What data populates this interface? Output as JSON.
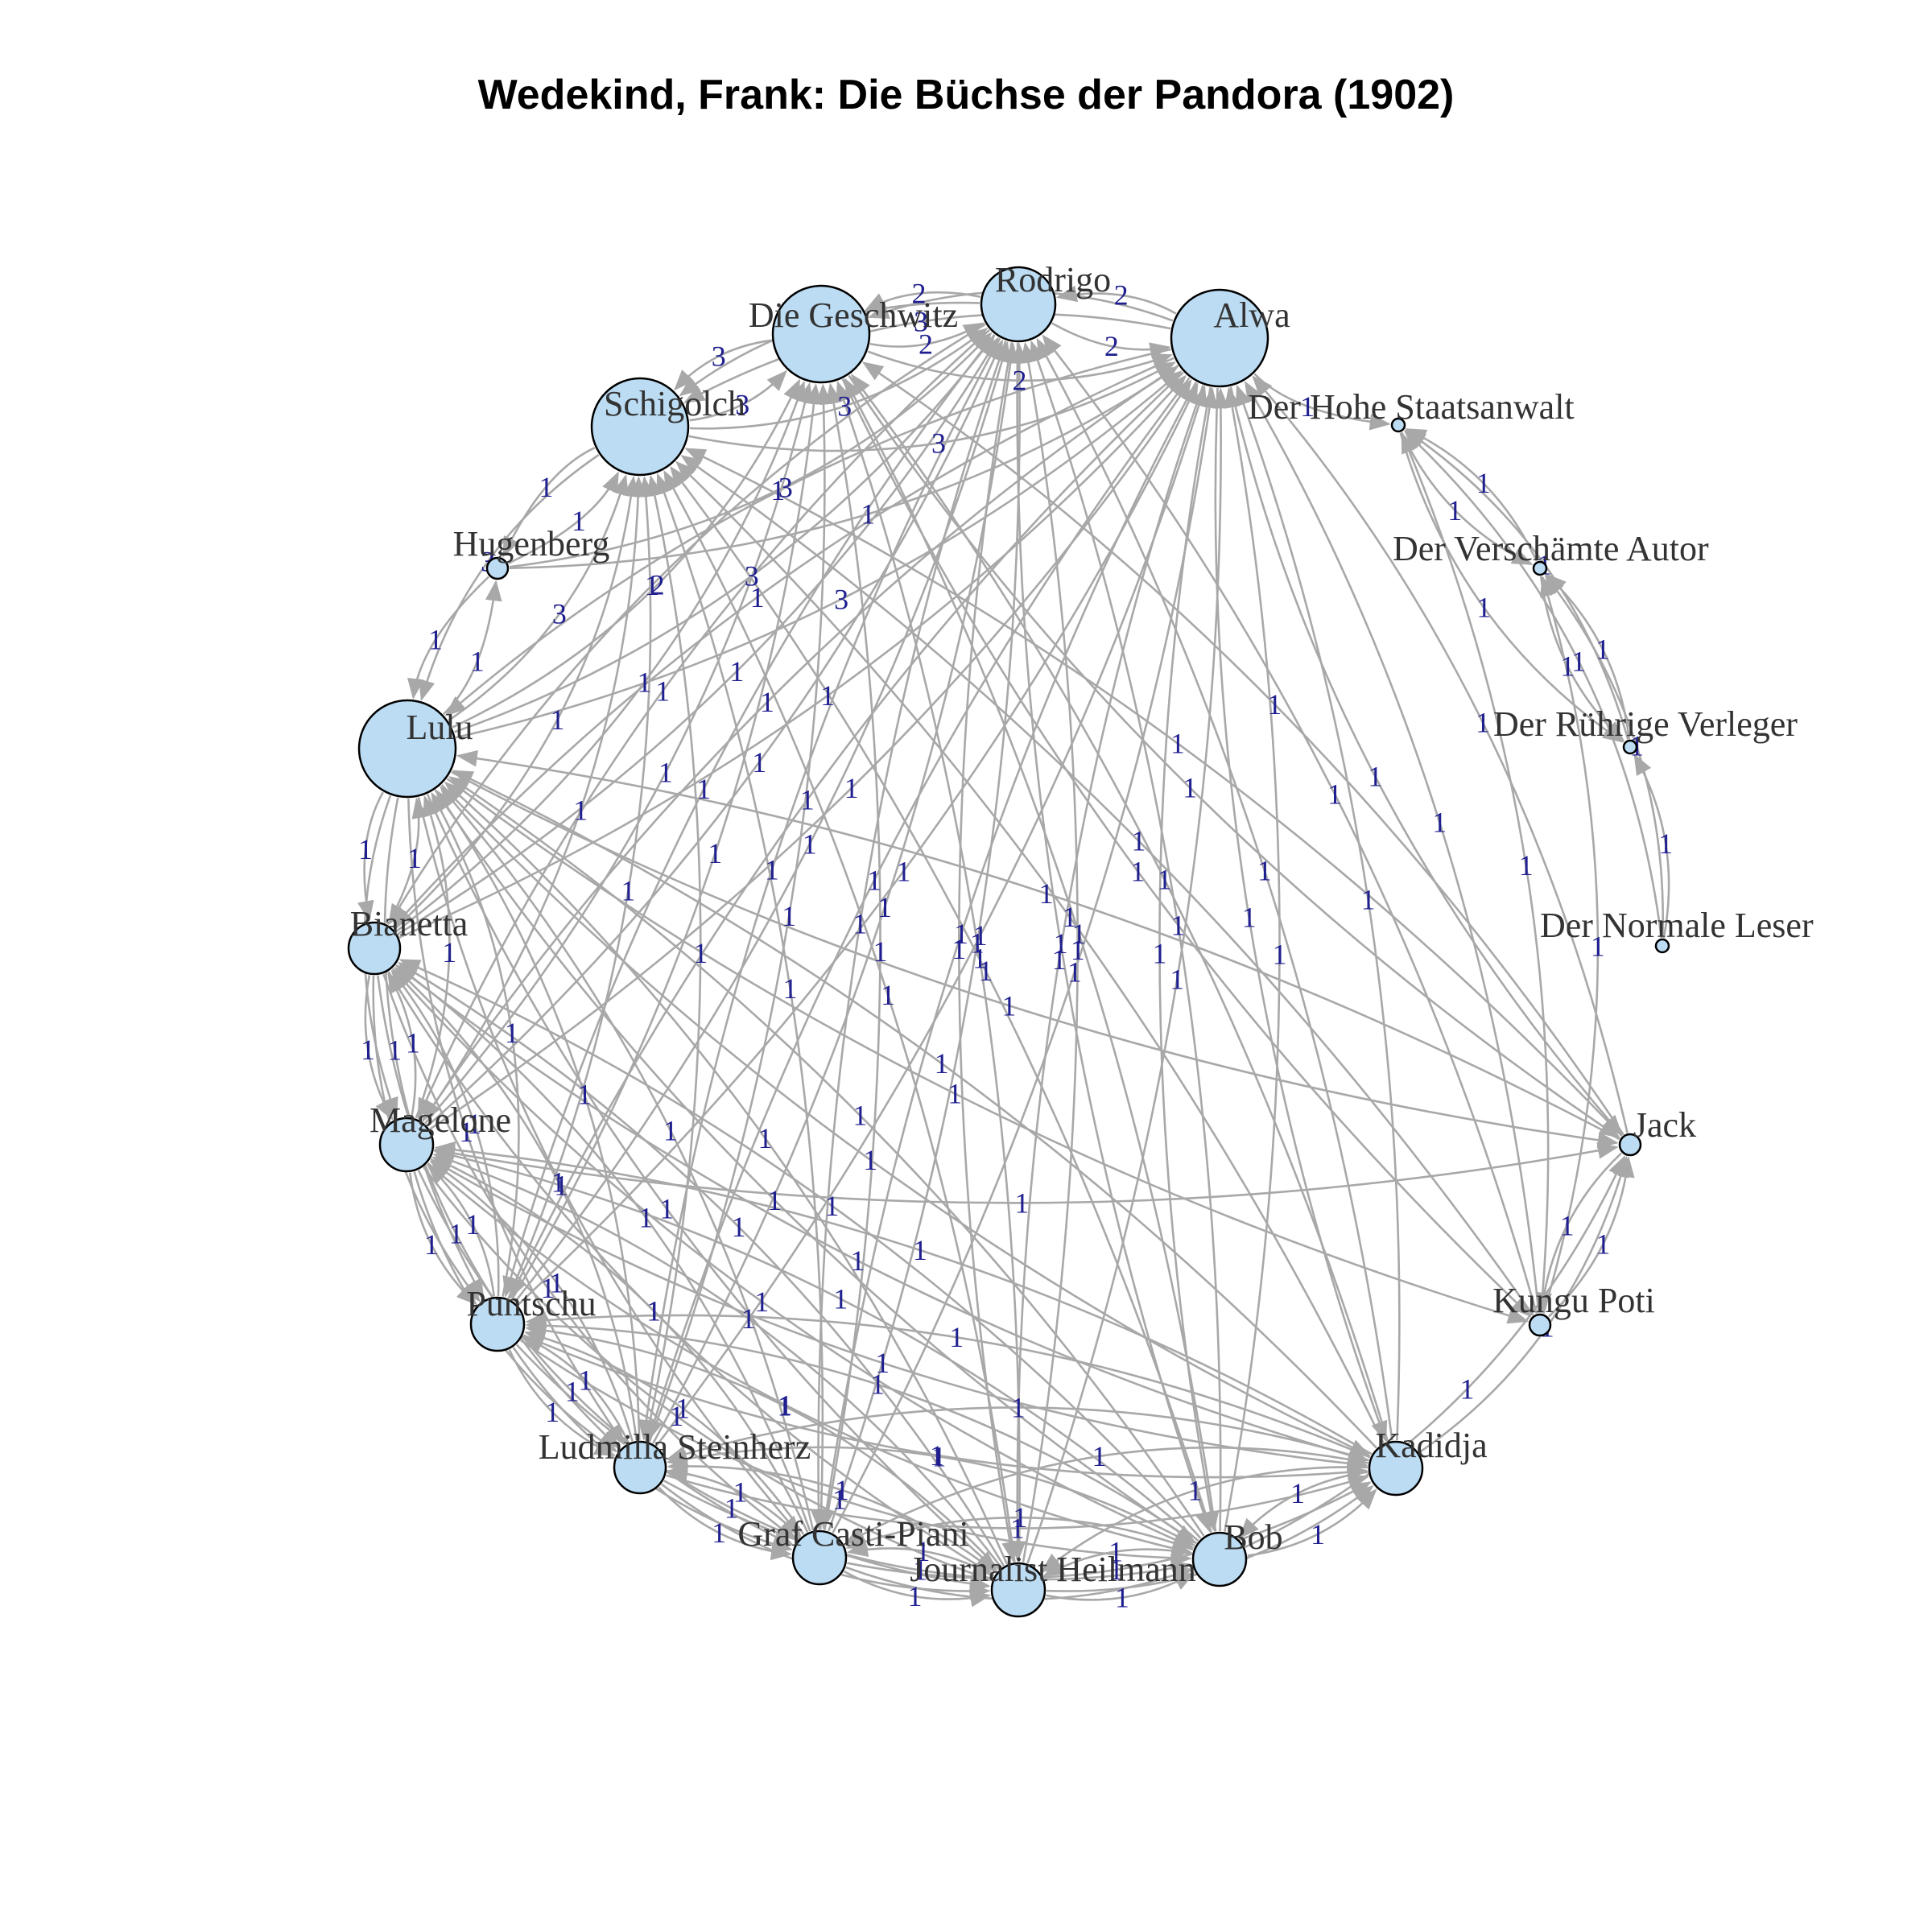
{
  "title": "Wedekind, Frank: Die Büchse der Pandora (1902)",
  "nodes": [
    {
      "id": "rodrigo",
      "label": "Rodrigo"
    },
    {
      "id": "alwa",
      "label": "Alwa"
    },
    {
      "id": "geschwitz",
      "label": "Die Geschwitz"
    },
    {
      "id": "schigolch",
      "label": "Schigolch"
    },
    {
      "id": "staatsanwalt",
      "label": "Der Hohe Staatsanwalt"
    },
    {
      "id": "hugenberg",
      "label": "Hugenberg"
    },
    {
      "id": "autor",
      "label": "Der Verschämte Autor"
    },
    {
      "id": "lulu",
      "label": "Lulu"
    },
    {
      "id": "verleger",
      "label": "Der Rührige Verleger"
    },
    {
      "id": "bianetta",
      "label": "Bianetta"
    },
    {
      "id": "leser",
      "label": "Der Normale Leser"
    },
    {
      "id": "magelone",
      "label": "Magelone"
    },
    {
      "id": "jack",
      "label": "Jack"
    },
    {
      "id": "kungu",
      "label": "Kungu Poti"
    },
    {
      "id": "puntschu",
      "label": "Puntschu"
    },
    {
      "id": "kadidja",
      "label": "Kadidja"
    },
    {
      "id": "ludmilla",
      "label": "Ludmilla Steinherz"
    },
    {
      "id": "bob",
      "label": "Bob"
    },
    {
      "id": "casti",
      "label": "Graf Casti-Piani"
    },
    {
      "id": "heilmann",
      "label": "Journalist Heilmann"
    }
  ],
  "edges": [
    {
      "s": "rodrigo",
      "t": "alwa",
      "w": "2"
    },
    {
      "s": "alwa",
      "t": "rodrigo",
      "w": "2"
    },
    {
      "s": "rodrigo",
      "t": "geschwitz",
      "w": "2"
    },
    {
      "s": "geschwitz",
      "t": "rodrigo",
      "w": "2"
    },
    {
      "s": "rodrigo",
      "t": "schigolch",
      "w": "3"
    },
    {
      "s": "schigolch",
      "t": "rodrigo",
      "w": "3"
    },
    {
      "s": "alwa",
      "t": "geschwitz",
      "w": "2"
    },
    {
      "s": "geschwitz",
      "t": "alwa",
      "w": "2"
    },
    {
      "s": "alwa",
      "t": "schigolch",
      "w": "3"
    },
    {
      "s": "schigolch",
      "t": "alwa",
      "w": "3"
    },
    {
      "s": "geschwitz",
      "t": "schigolch",
      "w": "3"
    },
    {
      "s": "schigolch",
      "t": "geschwitz",
      "w": "3"
    },
    {
      "s": "lulu",
      "t": "schigolch",
      "w": "3"
    },
    {
      "s": "schigolch",
      "t": "lulu",
      "w": "3"
    },
    {
      "s": "lulu",
      "t": "alwa",
      "w": "3"
    },
    {
      "s": "alwa",
      "t": "lulu",
      "w": "3"
    },
    {
      "s": "lulu",
      "t": "geschwitz",
      "w": "2"
    },
    {
      "s": "lulu",
      "t": "rodrigo",
      "w": "3"
    },
    {
      "s": "hugenberg",
      "t": "lulu",
      "w": "1"
    },
    {
      "s": "lulu",
      "t": "hugenberg",
      "w": "1"
    },
    {
      "s": "hugenberg",
      "t": "schigolch",
      "w": "1"
    },
    {
      "s": "schigolch",
      "t": "hugenberg",
      "w": "1"
    },
    {
      "s": "hugenberg",
      "t": "alwa",
      "w": "1"
    },
    {
      "s": "hugenberg",
      "t": "rodrigo",
      "w": "1"
    },
    {
      "s": "lulu",
      "t": "bianetta",
      "w": "1"
    },
    {
      "s": "bianetta",
      "t": "lulu",
      "w": "1"
    },
    {
      "s": "lulu",
      "t": "magelone",
      "w": "1"
    },
    {
      "s": "magelone",
      "t": "lulu",
      "w": "1"
    },
    {
      "s": "lulu",
      "t": "puntschu",
      "w": "1"
    },
    {
      "s": "puntschu",
      "t": "lulu",
      "w": "1"
    },
    {
      "s": "lulu",
      "t": "ludmilla",
      "w": "1"
    },
    {
      "s": "ludmilla",
      "t": "lulu",
      "w": "1"
    },
    {
      "s": "lulu",
      "t": "casti",
      "w": "1"
    },
    {
      "s": "casti",
      "t": "lulu",
      "w": "1"
    },
    {
      "s": "lulu",
      "t": "heilmann",
      "w": "1"
    },
    {
      "s": "heilmann",
      "t": "lulu",
      "w": "1"
    },
    {
      "s": "lulu",
      "t": "bob",
      "w": "1"
    },
    {
      "s": "bob",
      "t": "lulu",
      "w": "1"
    },
    {
      "s": "lulu",
      "t": "kadidja",
      "w": "1"
    },
    {
      "s": "kadidja",
      "t": "lulu",
      "w": "1"
    },
    {
      "s": "lulu",
      "t": "jack",
      "w": "1"
    },
    {
      "s": "jack",
      "t": "lulu",
      "w": "1"
    },
    {
      "s": "bianetta",
      "t": "magelone",
      "w": "1"
    },
    {
      "s": "magelone",
      "t": "bianetta",
      "w": "1"
    },
    {
      "s": "bianetta",
      "t": "puntschu",
      "w": "1"
    },
    {
      "s": "puntschu",
      "t": "bianetta",
      "w": "1"
    },
    {
      "s": "bianetta",
      "t": "ludmilla",
      "w": "1"
    },
    {
      "s": "ludmilla",
      "t": "bianetta",
      "w": "1"
    },
    {
      "s": "bianetta",
      "t": "casti",
      "w": "1"
    },
    {
      "s": "casti",
      "t": "bianetta",
      "w": "1"
    },
    {
      "s": "bianetta",
      "t": "heilmann",
      "w": "1"
    },
    {
      "s": "heilmann",
      "t": "bianetta",
      "w": "1"
    },
    {
      "s": "bianetta",
      "t": "bob",
      "w": "1"
    },
    {
      "s": "bob",
      "t": "bianetta",
      "w": "1"
    },
    {
      "s": "bianetta",
      "t": "kadidja",
      "w": "1"
    },
    {
      "s": "bianetta",
      "t": "alwa",
      "w": "1"
    },
    {
      "s": "alwa",
      "t": "bianetta",
      "w": "1"
    },
    {
      "s": "bianetta",
      "t": "rodrigo",
      "w": "1"
    },
    {
      "s": "rodrigo",
      "t": "bianetta",
      "w": "1"
    },
    {
      "s": "bianetta",
      "t": "geschwitz",
      "w": "1"
    },
    {
      "s": "bianetta",
      "t": "schigolch",
      "w": "1"
    },
    {
      "s": "magelone",
      "t": "puntschu",
      "w": "1"
    },
    {
      "s": "puntschu",
      "t": "magelone",
      "w": "1"
    },
    {
      "s": "magelone",
      "t": "ludmilla",
      "w": "1"
    },
    {
      "s": "ludmilla",
      "t": "magelone",
      "w": "1"
    },
    {
      "s": "magelone",
      "t": "casti",
      "w": "1"
    },
    {
      "s": "casti",
      "t": "magelone",
      "w": "1"
    },
    {
      "s": "magelone",
      "t": "heilmann",
      "w": "1"
    },
    {
      "s": "heilmann",
      "t": "magelone",
      "w": "1"
    },
    {
      "s": "magelone",
      "t": "bob",
      "w": "1"
    },
    {
      "s": "bob",
      "t": "magelone",
      "w": "1"
    },
    {
      "s": "magelone",
      "t": "kadidja",
      "w": "1"
    },
    {
      "s": "kadidja",
      "t": "magelone",
      "w": "1"
    },
    {
      "s": "magelone",
      "t": "alwa",
      "w": "1"
    },
    {
      "s": "alwa",
      "t": "magelone",
      "w": "1"
    },
    {
      "s": "magelone",
      "t": "rodrigo",
      "w": "1"
    },
    {
      "s": "rodrigo",
      "t": "magelone",
      "w": "1"
    },
    {
      "s": "magelone",
      "t": "geschwitz",
      "w": "1"
    },
    {
      "s": "magelone",
      "t": "schigolch",
      "w": "1"
    },
    {
      "s": "puntschu",
      "t": "ludmilla",
      "w": "1"
    },
    {
      "s": "ludmilla",
      "t": "puntschu",
      "w": "1"
    },
    {
      "s": "puntschu",
      "t": "casti",
      "w": "1"
    },
    {
      "s": "casti",
      "t": "puntschu",
      "w": "1"
    },
    {
      "s": "puntschu",
      "t": "heilmann",
      "w": "1"
    },
    {
      "s": "heilmann",
      "t": "puntschu",
      "w": "1"
    },
    {
      "s": "puntschu",
      "t": "bob",
      "w": "1"
    },
    {
      "s": "bob",
      "t": "puntschu",
      "w": "1"
    },
    {
      "s": "puntschu",
      "t": "kadidja",
      "w": "1"
    },
    {
      "s": "kadidja",
      "t": "puntschu",
      "w": "1"
    },
    {
      "s": "puntschu",
      "t": "alwa",
      "w": "1"
    },
    {
      "s": "alwa",
      "t": "puntschu",
      "w": "1"
    },
    {
      "s": "puntschu",
      "t": "rodrigo",
      "w": "1"
    },
    {
      "s": "rodrigo",
      "t": "puntschu",
      "w": "1"
    },
    {
      "s": "puntschu",
      "t": "geschwitz",
      "w": "1"
    },
    {
      "s": "puntschu",
      "t": "schigolch",
      "w": "1"
    },
    {
      "s": "ludmilla",
      "t": "casti",
      "w": "1"
    },
    {
      "s": "casti",
      "t": "ludmilla",
      "w": "1"
    },
    {
      "s": "ludmilla",
      "t": "heilmann",
      "w": "1"
    },
    {
      "s": "heilmann",
      "t": "ludmilla",
      "w": "1"
    },
    {
      "s": "ludmilla",
      "t": "bob",
      "w": "1"
    },
    {
      "s": "bob",
      "t": "ludmilla",
      "w": "1"
    },
    {
      "s": "ludmilla",
      "t": "kadidja",
      "w": "1"
    },
    {
      "s": "kadidja",
      "t": "ludmilla",
      "w": "1"
    },
    {
      "s": "ludmilla",
      "t": "alwa",
      "w": "1"
    },
    {
      "s": "alwa",
      "t": "ludmilla",
      "w": "1"
    },
    {
      "s": "ludmilla",
      "t": "rodrigo",
      "w": "1"
    },
    {
      "s": "rodrigo",
      "t": "ludmilla",
      "w": "1"
    },
    {
      "s": "ludmilla",
      "t": "geschwitz",
      "w": "1"
    },
    {
      "s": "ludmilla",
      "t": "schigolch",
      "w": "1"
    },
    {
      "s": "casti",
      "t": "heilmann",
      "w": "1"
    },
    {
      "s": "heilmann",
      "t": "casti",
      "w": "1"
    },
    {
      "s": "casti",
      "t": "bob",
      "w": "1"
    },
    {
      "s": "bob",
      "t": "casti",
      "w": "1"
    },
    {
      "s": "casti",
      "t": "kadidja",
      "w": "1"
    },
    {
      "s": "kadidja",
      "t": "casti",
      "w": "1"
    },
    {
      "s": "casti",
      "t": "alwa",
      "w": "1"
    },
    {
      "s": "alwa",
      "t": "casti",
      "w": "1"
    },
    {
      "s": "casti",
      "t": "rodrigo",
      "w": "1"
    },
    {
      "s": "rodrigo",
      "t": "casti",
      "w": "1"
    },
    {
      "s": "casti",
      "t": "geschwitz",
      "w": "1"
    },
    {
      "s": "casti",
      "t": "schigolch",
      "w": "1"
    },
    {
      "s": "heilmann",
      "t": "bob",
      "w": "1"
    },
    {
      "s": "bob",
      "t": "heilmann",
      "w": "1"
    },
    {
      "s": "heilmann",
      "t": "kadidja",
      "w": "1"
    },
    {
      "s": "kadidja",
      "t": "heilmann",
      "w": "1"
    },
    {
      "s": "heilmann",
      "t": "alwa",
      "w": "1"
    },
    {
      "s": "alwa",
      "t": "heilmann",
      "w": "1"
    },
    {
      "s": "heilmann",
      "t": "rodrigo",
      "w": "1"
    },
    {
      "s": "rodrigo",
      "t": "heilmann",
      "w": "1"
    },
    {
      "s": "heilmann",
      "t": "geschwitz",
      "w": "1"
    },
    {
      "s": "heilmann",
      "t": "schigolch",
      "w": "1"
    },
    {
      "s": "bob",
      "t": "kadidja",
      "w": "1"
    },
    {
      "s": "kadidja",
      "t": "bob",
      "w": "1"
    },
    {
      "s": "bob",
      "t": "alwa",
      "w": "1"
    },
    {
      "s": "alwa",
      "t": "bob",
      "w": "1"
    },
    {
      "s": "bob",
      "t": "rodrigo",
      "w": "1"
    },
    {
      "s": "rodrigo",
      "t": "bob",
      "w": "1"
    },
    {
      "s": "bob",
      "t": "geschwitz",
      "w": "1"
    },
    {
      "s": "bob",
      "t": "schigolch",
      "w": "1"
    },
    {
      "s": "kadidja",
      "t": "alwa",
      "w": "1"
    },
    {
      "s": "alwa",
      "t": "kadidja",
      "w": "1"
    },
    {
      "s": "kadidja",
      "t": "rodrigo",
      "w": "1"
    },
    {
      "s": "kadidja",
      "t": "geschwitz",
      "w": "1"
    },
    {
      "s": "kadidja",
      "t": "schigolch",
      "w": "1"
    },
    {
      "s": "jack",
      "t": "alwa",
      "w": "1"
    },
    {
      "s": "alwa",
      "t": "jack",
      "w": "1"
    },
    {
      "s": "jack",
      "t": "geschwitz",
      "w": "1"
    },
    {
      "s": "geschwitz",
      "t": "jack",
      "w": "1"
    },
    {
      "s": "jack",
      "t": "schigolch",
      "w": "1"
    },
    {
      "s": "kungu",
      "t": "jack",
      "w": "1"
    },
    {
      "s": "jack",
      "t": "kungu",
      "w": "1"
    },
    {
      "s": "kungu",
      "t": "alwa",
      "w": "1"
    },
    {
      "s": "kungu",
      "t": "rodrigo",
      "w": "1"
    },
    {
      "s": "kungu",
      "t": "schigolch",
      "w": "1"
    },
    {
      "s": "kungu",
      "t": "staatsanwalt",
      "w": "1"
    },
    {
      "s": "kungu",
      "t": "autor",
      "w": "1"
    },
    {
      "s": "alwa",
      "t": "staatsanwalt",
      "w": "1"
    },
    {
      "s": "staatsanwalt",
      "t": "autor",
      "w": "1"
    },
    {
      "s": "autor",
      "t": "staatsanwalt",
      "w": "1"
    },
    {
      "s": "staatsanwalt",
      "t": "verleger",
      "w": "1"
    },
    {
      "s": "verleger",
      "t": "staatsanwalt",
      "w": "1"
    },
    {
      "s": "autor",
      "t": "verleger",
      "w": "1"
    },
    {
      "s": "verleger",
      "t": "autor",
      "w": "1"
    },
    {
      "s": "leser",
      "t": "verleger",
      "w": "1"
    },
    {
      "s": "leser",
      "t": "autor",
      "w": "1"
    },
    {
      "s": "leser",
      "t": "staatsanwalt",
      "w": "1"
    },
    {
      "s": "kadidja",
      "t": "jack",
      "w": "1"
    },
    {
      "s": "bob",
      "t": "jack",
      "w": "1"
    },
    {
      "s": "magelone",
      "t": "jack",
      "w": "1"
    },
    {
      "s": "lulu",
      "t": "kungu",
      "w": "1"
    },
    {
      "s": "geschwitz",
      "t": "kungu",
      "w": "1"
    }
  ]
}
